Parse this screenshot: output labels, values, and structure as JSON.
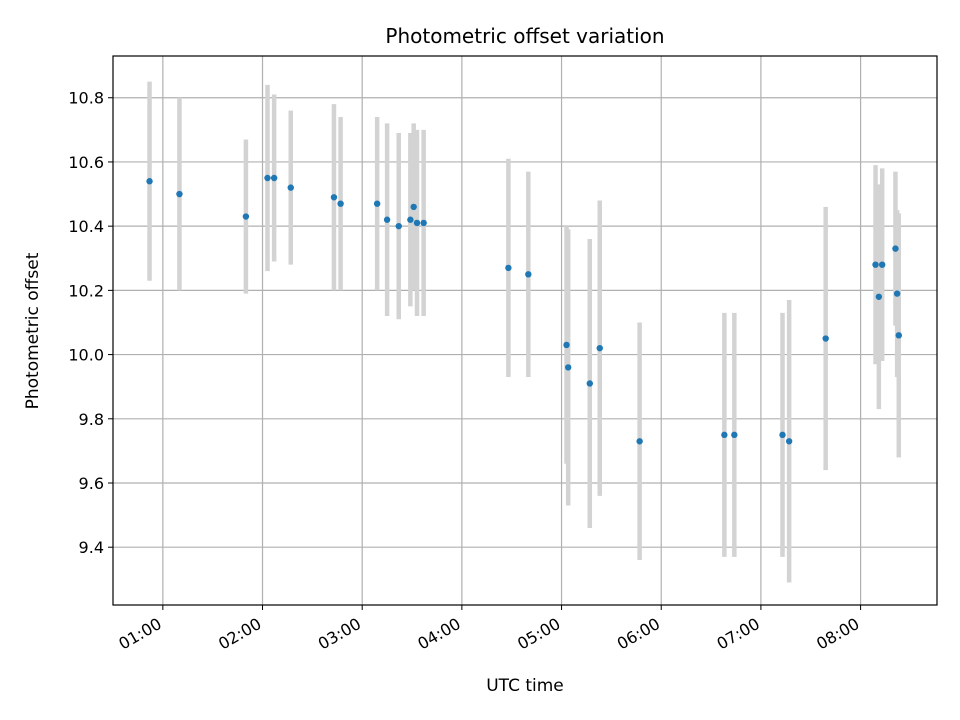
{
  "chart_data": {
    "type": "scatter",
    "title": "Photometric offset variation",
    "xlabel": "UTC time",
    "ylabel": "Photometric offset",
    "x_tick_labels": [
      "01:00",
      "02:00",
      "03:00",
      "04:00",
      "05:00",
      "06:00",
      "07:00",
      "08:00"
    ],
    "y_tick_labels": [
      "9.4",
      "9.6",
      "9.8",
      "10.0",
      "10.2",
      "10.4",
      "10.6",
      "10.8"
    ],
    "ylim": [
      9.22,
      10.93
    ],
    "grid": true,
    "colors": {
      "point": "#1f77b4",
      "errorbar": "#d3d3d3",
      "grid": "#b0b0b0"
    },
    "series": [
      {
        "x": [
          "00:52",
          "01:10",
          "01:50",
          "02:03",
          "02:07",
          "02:17",
          "02:43",
          "02:47",
          "03:09",
          "03:15",
          "03:22",
          "03:29",
          "03:31",
          "03:33",
          "03:37",
          "04:28",
          "04:40",
          "05:03",
          "05:04",
          "05:17",
          "05:23",
          "05:47",
          "06:38",
          "06:44",
          "07:13",
          "07:17",
          "07:39",
          "08:09",
          "08:11",
          "08:13",
          "08:21",
          "08:22",
          "08:23"
        ],
        "y": [
          10.54,
          10.5,
          10.43,
          10.55,
          10.55,
          10.52,
          10.49,
          10.47,
          10.47,
          10.42,
          10.4,
          10.42,
          10.46,
          10.41,
          10.41,
          10.27,
          10.25,
          10.03,
          9.96,
          9.91,
          10.02,
          9.73,
          9.75,
          9.75,
          9.75,
          9.73,
          10.05,
          10.28,
          10.18,
          10.28,
          10.33,
          10.19,
          10.06
        ],
        "yerr": [
          0.31,
          0.3,
          0.24,
          0.29,
          0.26,
          0.24,
          0.29,
          0.27,
          0.27,
          0.3,
          0.29,
          0.27,
          0.26,
          0.29,
          0.29,
          0.34,
          0.32,
          0.37,
          0.43,
          0.45,
          0.46,
          0.37,
          0.38,
          0.38,
          0.38,
          0.44,
          0.41,
          0.31,
          0.35,
          0.3,
          0.24,
          0.26,
          0.38
        ]
      }
    ]
  }
}
